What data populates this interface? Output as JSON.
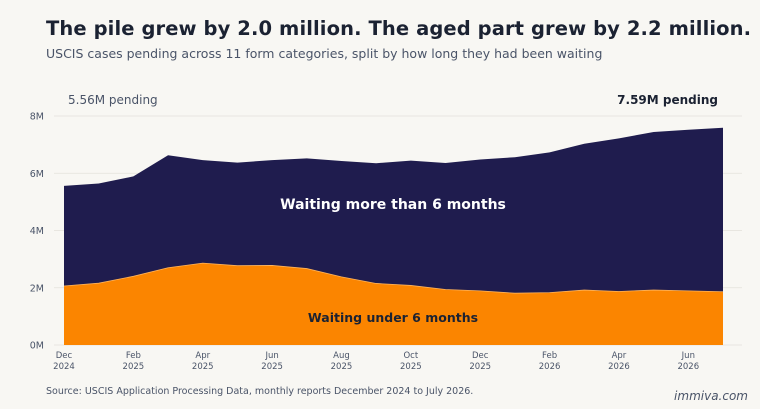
{
  "title": "The pile grew by 2.0 million. The aged part grew by 2.2 million.",
  "subtitle": "USCIS cases pending across 11 form categories, split by how long they had been waiting",
  "source": "Source: USCIS Application Processing Data, monthly reports December 2024 to July 2026.",
  "brand": "immiva.com",
  "chart_data": {
    "type": "area",
    "stacked": true,
    "x": [
      "2024-12",
      "2025-01",
      "2025-02",
      "2025-03",
      "2025-04",
      "2025-05",
      "2025-06",
      "2025-07",
      "2025-08",
      "2025-09",
      "2025-10",
      "2025-11",
      "2025-12",
      "2026-01",
      "2026-02",
      "2026-03",
      "2026-04",
      "2026-05",
      "2026-06",
      "2026-07"
    ],
    "x_tick_labels": [
      {
        "month": "Dec",
        "year": "2024",
        "index": 0
      },
      {
        "month": "Feb",
        "year": "2025",
        "index": 2
      },
      {
        "month": "Apr",
        "year": "2025",
        "index": 4
      },
      {
        "month": "Jun",
        "year": "2025",
        "index": 6
      },
      {
        "month": "Aug",
        "year": "2025",
        "index": 8
      },
      {
        "month": "Oct",
        "year": "2025",
        "index": 10
      },
      {
        "month": "Dec",
        "year": "2025",
        "index": 12
      },
      {
        "month": "Feb",
        "year": "2026",
        "index": 14
      },
      {
        "month": "Apr",
        "year": "2026",
        "index": 16
      },
      {
        "month": "Jun",
        "year": "2026",
        "index": 18
      }
    ],
    "y_ticks": [
      0,
      2,
      4,
      6,
      8
    ],
    "y_tick_labels": [
      "0M",
      "2M",
      "4M",
      "6M",
      "8M"
    ],
    "ylim": [
      0,
      8
    ],
    "units": "millions",
    "grid": true,
    "series": [
      {
        "name": "Waiting under 6 months",
        "color": "#fb8500",
        "label_color": "#1b2232",
        "values": [
          2.06,
          2.16,
          2.4,
          2.7,
          2.86,
          2.77,
          2.78,
          2.67,
          2.38,
          2.15,
          2.08,
          1.94,
          1.89,
          1.81,
          1.83,
          1.92,
          1.87,
          1.92,
          1.89,
          1.86
        ]
      },
      {
        "name": "Waiting more than 6 months",
        "color": "#1f1c4e",
        "label_color": "#ffffff",
        "values": [
          3.5,
          3.48,
          3.49,
          3.93,
          3.6,
          3.6,
          3.68,
          3.85,
          4.05,
          4.2,
          4.36,
          4.42,
          4.59,
          4.75,
          4.9,
          5.11,
          5.35,
          5.52,
          5.63,
          5.73
        ]
      }
    ],
    "annotations": {
      "start": "5.56M pending",
      "end": "7.59M pending"
    }
  }
}
